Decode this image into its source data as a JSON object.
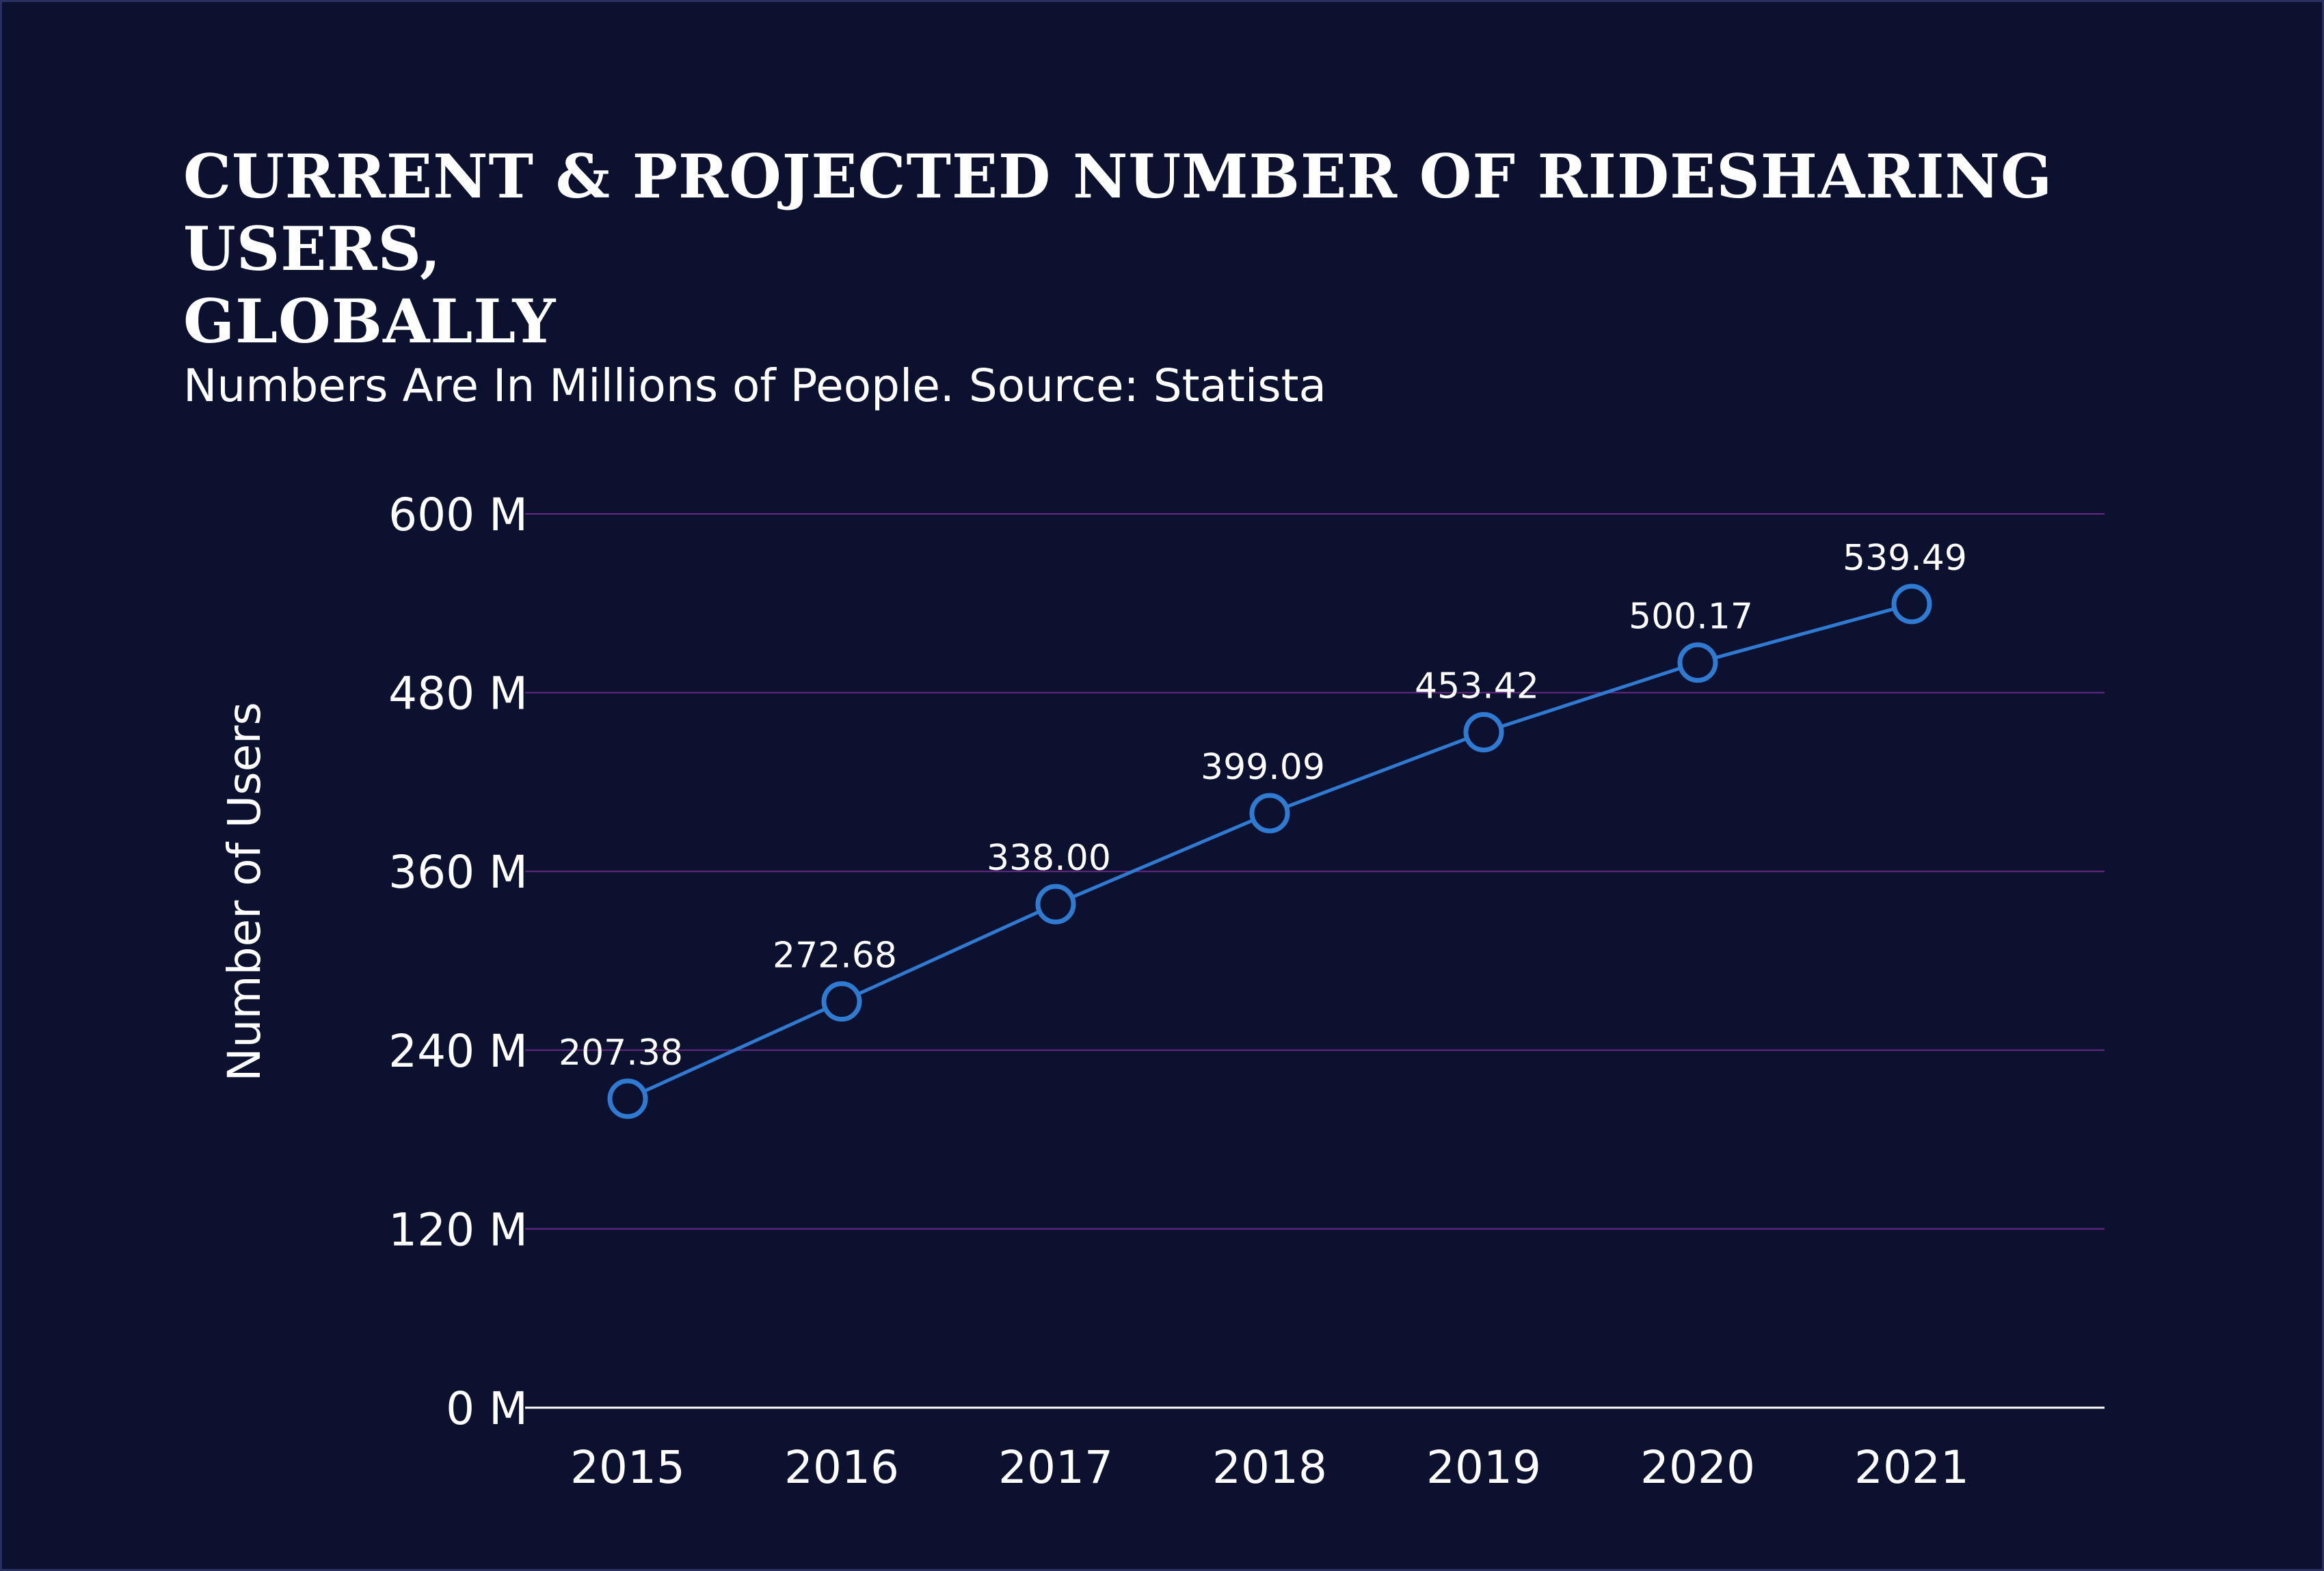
{
  "title_line1": "CURRENT & PROJECTED NUMBER OF RIDESHARING USERS,",
  "title_line2": "GLOBALLY",
  "subtitle": "Numbers Are In Millions of People. Source: Statista",
  "colors": {
    "background": "#0d1130",
    "gridline": "#6a2a86",
    "series": "#2f7bd2",
    "axis": "#ffffff",
    "text": "#ffffff"
  },
  "chart_data": {
    "type": "line",
    "x": [
      "2015",
      "2016",
      "2017",
      "2018",
      "2019",
      "2020",
      "2021"
    ],
    "series": [
      {
        "values": [
          207.38,
          272.68,
          338.0,
          399.09,
          453.42,
          500.17,
          539.49
        ],
        "labels": [
          "207.38",
          "272.68",
          "338.00",
          "399.09",
          "453.42",
          "500.17",
          "539.49"
        ]
      }
    ],
    "yticks": [
      0,
      120,
      240,
      360,
      480,
      600
    ],
    "ytick_labels": [
      "0 M",
      "120 M",
      "240 M",
      "360 M",
      "480 M",
      "600 M"
    ],
    "ylim": [
      0,
      600
    ],
    "ylabel": "Number of Users",
    "xlabel": "",
    "grid": true,
    "markers": "hollow-circle"
  }
}
